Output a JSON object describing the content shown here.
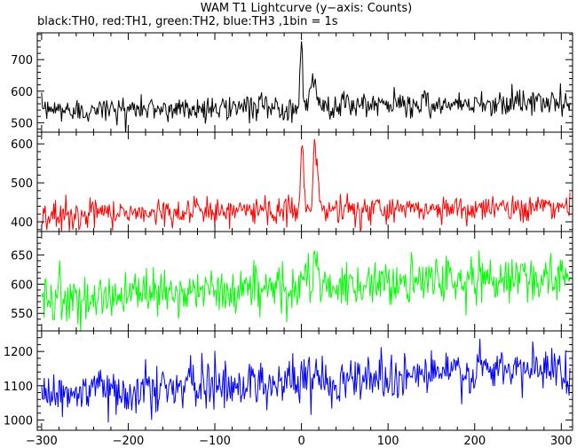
{
  "header": {
    "title": "WAM T1 Lightcurve (y−axis: Counts)",
    "subtitle": "black:TH0, red:TH1, green:TH2, blue:TH3 ,1bin = 1s"
  },
  "chart_data": {
    "type": "line",
    "title": "WAM T1 Lightcurve (y−axis: Counts)",
    "subtitle": "black:TH0, red:TH1, green:TH2, blue:TH3 ,1bin = 1s",
    "xlim": [
      -305,
      313
    ],
    "x_ticks": [
      -300,
      -200,
      -100,
      0,
      100,
      200,
      300
    ],
    "x_tick_labels": [
      "−300",
      "−200",
      "−100",
      "0",
      "100",
      "200",
      "300"
    ],
    "bin_seconds": 1,
    "panels": [
      {
        "channel": "TH0",
        "color": "#000000",
        "ylim": [
          470,
          785
        ],
        "y_ticks": [
          500,
          600,
          700
        ],
        "baseline": [
          [
            -300,
            540
          ],
          [
            -150,
            545
          ],
          [
            0,
            550
          ],
          [
            150,
            560
          ],
          [
            310,
            565
          ]
        ],
        "noise_sigma": 20,
        "peaks": [
          {
            "t": 0,
            "amplitude": 230,
            "width": 1.2
          },
          {
            "t": 14,
            "amplitude": 90,
            "width": 3.5
          }
        ]
      },
      {
        "channel": "TH1",
        "color": "#ff0000",
        "ylim": [
          375,
          630
        ],
        "y_ticks": [
          400,
          500,
          600
        ],
        "baseline": [
          [
            -300,
            415
          ],
          [
            -150,
            425
          ],
          [
            0,
            430
          ],
          [
            150,
            435
          ],
          [
            310,
            440
          ]
        ],
        "noise_sigma": 18,
        "peaks": [
          {
            "t": 1,
            "amplitude": 210,
            "width": 1.6
          },
          {
            "t": 16,
            "amplitude": 170,
            "width": 2.5
          }
        ]
      },
      {
        "channel": "TH2",
        "color": "#00ff00",
        "ylim": [
          520,
          690
        ],
        "y_ticks": [
          550,
          600,
          650
        ],
        "baseline": [
          [
            -300,
            575
          ],
          [
            -150,
            585
          ],
          [
            0,
            595
          ],
          [
            150,
            605
          ],
          [
            310,
            610
          ]
        ],
        "noise_sigma": 20,
        "peaks": [
          {
            "t": 0,
            "amplitude": 35,
            "width": 2
          },
          {
            "t": 16,
            "amplitude": 40,
            "width": 2.5
          }
        ]
      },
      {
        "channel": "TH3",
        "color": "#0000ff",
        "ylim": [
          970,
          1260
        ],
        "y_ticks": [
          1000,
          1100,
          1200
        ],
        "baseline": [
          [
            -300,
            1075
          ],
          [
            -150,
            1095
          ],
          [
            0,
            1115
          ],
          [
            150,
            1135
          ],
          [
            310,
            1150
          ]
        ],
        "noise_sigma": 35,
        "peaks": []
      }
    ]
  }
}
